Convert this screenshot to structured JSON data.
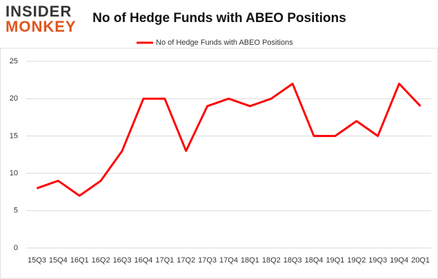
{
  "logo": {
    "line1": "INSIDER",
    "line2": "MONKEY"
  },
  "chart_data": {
    "type": "line",
    "title": "No of Hedge Funds with ABEO Positions",
    "categories": [
      "15Q3",
      "15Q4",
      "16Q1",
      "16Q2",
      "16Q3",
      "16Q4",
      "17Q1",
      "17Q2",
      "17Q3",
      "17Q4",
      "18Q1",
      "18Q2",
      "18Q3",
      "18Q4",
      "19Q1",
      "19Q2",
      "19Q3",
      "19Q4",
      "20Q1"
    ],
    "series": [
      {
        "name": "No of Hedge Funds with ABEO Positions",
        "color": "#ff0000",
        "values": [
          8,
          9,
          7,
          9,
          13,
          20,
          20,
          13,
          19,
          20,
          19,
          20,
          22,
          15,
          15,
          17,
          15,
          22,
          19
        ]
      }
    ],
    "ylim": [
      0,
      25
    ],
    "yticks": [
      0,
      5,
      10,
      15,
      20,
      25
    ],
    "grid": true,
    "legend": "top"
  }
}
